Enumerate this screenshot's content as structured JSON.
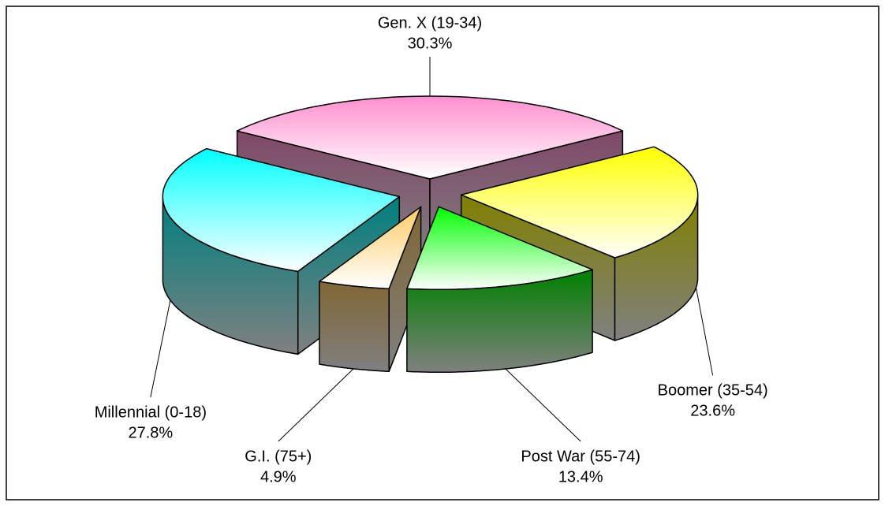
{
  "chart_data": {
    "type": "pie",
    "categories": [
      "Gen. X (19-34)",
      "Boomer (35-54)",
      "Post War (55-74)",
      "G.I. (75+)",
      "Millennial (0-18)"
    ],
    "values": [
      30.3,
      23.6,
      13.4,
      4.9,
      27.8
    ],
    "value_labels": [
      "30.3%",
      "23.6%",
      "13.4%",
      "4.9%",
      "27.8%"
    ],
    "colors": [
      "#ff8fcf",
      "#ffff00",
      "#00ff00",
      "#ffcc66",
      "#00ffff"
    ]
  }
}
